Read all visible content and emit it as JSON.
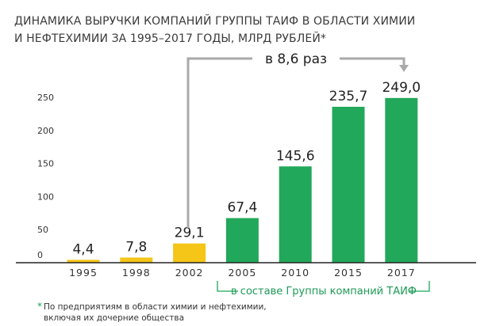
{
  "title_line1": "ДИНАМИКА ВЫРУЧКИ КОМПАНИЙ ГРУППЫ ТАИФ В ОБЛАСТИ ХИМИИ",
  "title_line2": "И НЕФТЕХИМИИ ЗА 1995–2017 ГОДЫ, МЛРД РУБЛЕЙ*",
  "annotation": "в 8,6 раз",
  "group_label": "в составе Группы компаний ТАИФ",
  "footnote_star": "*",
  "footnote_line1": "По предприятиям в области химии и нефтехимии,",
  "footnote_line2": "включая их дочерние общества",
  "colors": {
    "pre_group": "#f5c518",
    "group": "#22a85a",
    "bracket": "#1aa85b",
    "arrow": "#a9a9a9"
  },
  "chart_data": {
    "type": "bar",
    "title": "ДИНАМИКА ВЫРУЧКИ КОМПАНИЙ ГРУППЫ ТАИФ В ОБЛАСТИ ХИМИИ И НЕФТЕХИМИИ ЗА 1995–2017 ГОДЫ, МЛРД РУБЛЕЙ*",
    "categories": [
      "1995",
      "1998",
      "2002",
      "2005",
      "2010",
      "2015",
      "2017"
    ],
    "values": [
      4.4,
      7.8,
      29.1,
      67.4,
      145.6,
      235.7,
      249.0
    ],
    "data_labels": [
      "4,4",
      "7,8",
      "29,1",
      "67,4",
      "145,6",
      "235,7",
      "249,0"
    ],
    "bar_colors": [
      "#f5c518",
      "#f5c518",
      "#f5c518",
      "#22a85a",
      "#22a85a",
      "#22a85a",
      "#22a85a"
    ],
    "yticks": [
      0,
      50,
      100,
      150,
      200,
      250
    ],
    "ylim": [
      0,
      250
    ],
    "grid": false,
    "xlabel": "",
    "ylabel": ""
  }
}
